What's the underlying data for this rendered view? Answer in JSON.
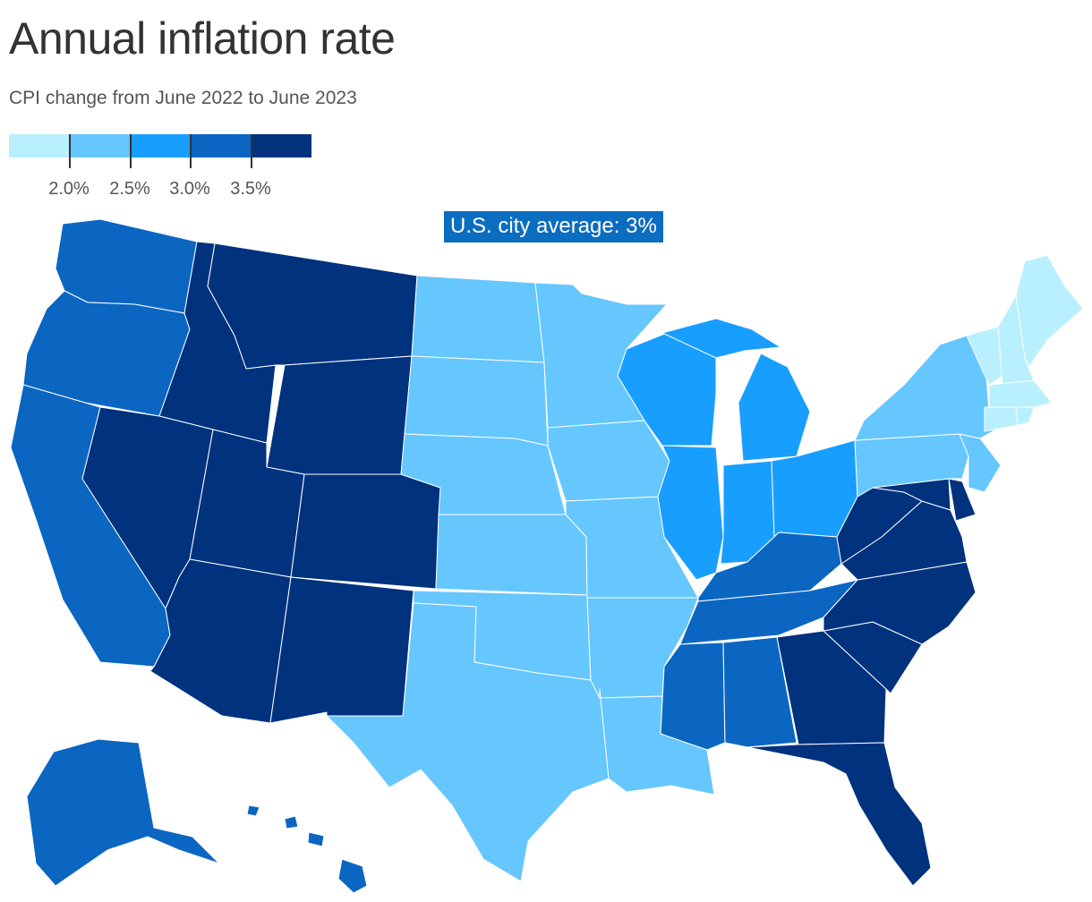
{
  "title": "Annual inflation rate",
  "subtitle": "CPI change from June 2022 to June 2023",
  "legend": {
    "colors": [
      "#b8f0ff",
      "#66c6fe",
      "#189eff",
      "#0b66c2",
      "#00327e"
    ],
    "ticks": [
      "2.0%",
      "2.5%",
      "3.0%",
      "3.5%"
    ]
  },
  "callout": {
    "label": "U.S. city average:",
    "value": "3%"
  },
  "states": {
    "WA": {
      "bin": 3
    },
    "OR": {
      "bin": 3
    },
    "CA": {
      "bin": 3
    },
    "AK": {
      "bin": 3
    },
    "HI": {
      "bin": 3
    },
    "ID": {
      "bin": 4
    },
    "MT": {
      "bin": 4
    },
    "WY": {
      "bin": 4
    },
    "NV": {
      "bin": 4
    },
    "UT": {
      "bin": 4
    },
    "CO": {
      "bin": 4
    },
    "AZ": {
      "bin": 4
    },
    "NM": {
      "bin": 4
    },
    "ND": {
      "bin": 1
    },
    "SD": {
      "bin": 1
    },
    "NE": {
      "bin": 1
    },
    "KS": {
      "bin": 1
    },
    "OK": {
      "bin": 1
    },
    "TX": {
      "bin": 1
    },
    "MN": {
      "bin": 1
    },
    "IA": {
      "bin": 1
    },
    "MO": {
      "bin": 1
    },
    "AR": {
      "bin": 1
    },
    "LA": {
      "bin": 1
    },
    "NY": {
      "bin": 1
    },
    "PA": {
      "bin": 1
    },
    "NJ": {
      "bin": 1
    },
    "WI": {
      "bin": 2
    },
    "MI": {
      "bin": 2
    },
    "IL": {
      "bin": 2
    },
    "IN": {
      "bin": 2
    },
    "OH": {
      "bin": 2
    },
    "KY": {
      "bin": 3
    },
    "TN": {
      "bin": 3
    },
    "MS": {
      "bin": 3
    },
    "AL": {
      "bin": 3
    },
    "GA": {
      "bin": 4
    },
    "FL": {
      "bin": 4
    },
    "SC": {
      "bin": 4
    },
    "NC": {
      "bin": 4
    },
    "VA": {
      "bin": 4
    },
    "WV": {
      "bin": 4
    },
    "MD": {
      "bin": 4
    },
    "DE": {
      "bin": 4
    },
    "ME": {
      "bin": 0
    },
    "NH": {
      "bin": 0
    },
    "VT": {
      "bin": 0
    },
    "MA": {
      "bin": 0
    },
    "CT": {
      "bin": 0
    },
    "RI": {
      "bin": 0
    }
  }
}
